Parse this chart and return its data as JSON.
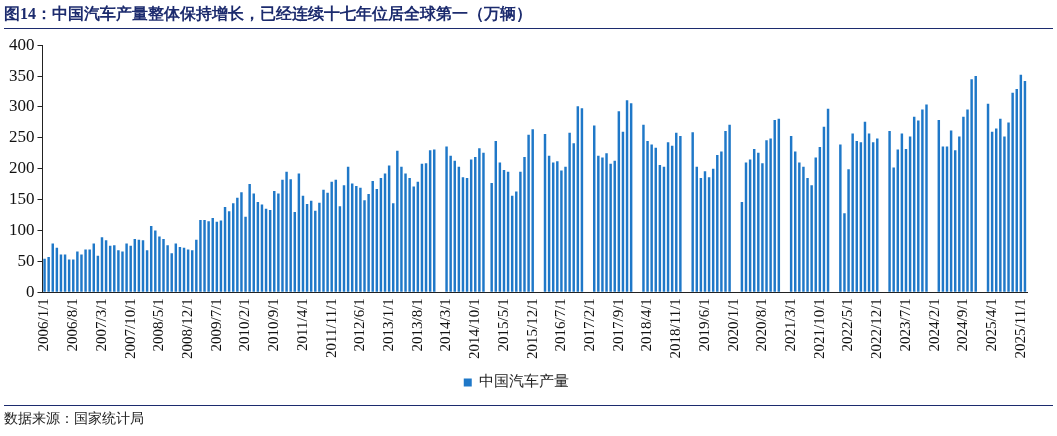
{
  "chart_data": {
    "type": "bar",
    "title": "图14：中国汽车产量整体保持增长，已经连续十七年位居全球第一（万辆）",
    "annotations": [
      "数据来源：国家统计局"
    ],
    "categories": [
      "2006/1/1",
      null,
      null,
      null,
      null,
      null,
      null,
      "2006/8/1",
      null,
      null,
      null,
      null,
      null,
      null,
      "2007/3/1",
      null,
      null,
      null,
      null,
      null,
      null,
      "2007/10/1",
      null,
      null,
      null,
      null,
      null,
      null,
      "2008/5/1",
      null,
      null,
      null,
      null,
      null,
      null,
      "2008/12/1",
      null,
      null,
      null,
      null,
      null,
      null,
      "2009/7/1",
      null,
      null,
      null,
      null,
      null,
      null,
      "2010/2/1",
      null,
      null,
      null,
      null,
      null,
      null,
      "2010/9/1",
      null,
      null,
      null,
      null,
      null,
      null,
      "2011/4/1",
      null,
      null,
      null,
      null,
      null,
      null,
      "2011/11/1",
      null,
      null,
      null,
      null,
      null,
      null,
      "2012/6/1",
      null,
      null,
      null,
      null,
      null,
      null,
      "2013/1/1",
      null,
      null,
      null,
      null,
      null,
      null,
      "2013/8/1",
      null,
      null,
      null,
      null,
      null,
      null,
      "2014/3/1",
      null,
      null,
      null,
      null,
      null,
      null,
      "2014/10/1",
      null,
      null,
      null,
      null,
      null,
      null,
      "2015/5/1",
      null,
      null,
      null,
      null,
      null,
      null,
      "2015/12/1",
      null,
      null,
      null,
      null,
      null,
      null,
      "2016/7/1",
      null,
      null,
      null,
      null,
      null,
      null,
      "2017/2/1",
      null,
      null,
      null,
      null,
      null,
      null,
      "2017/9/1",
      null,
      null,
      null,
      null,
      null,
      null,
      "2018/4/1",
      null,
      null,
      null,
      null,
      null,
      null,
      "2018/11/1",
      null,
      null,
      null,
      null,
      null,
      null,
      "2019/6/1",
      null,
      null,
      null,
      null,
      null,
      null,
      "2020/1/1",
      null,
      null,
      null,
      null,
      null,
      null,
      "2020/8/1",
      null,
      null,
      null,
      null,
      null,
      null,
      "2021/3/1",
      null,
      null,
      null,
      null,
      null,
      null,
      "2021/10/1",
      null,
      null,
      null,
      null,
      null,
      null,
      "2022/5/1",
      null,
      null,
      null,
      null,
      null,
      null,
      "2022/12/1",
      null,
      null,
      null,
      null,
      null,
      null,
      "2023/7/1",
      null,
      null,
      null,
      null,
      null,
      null,
      "2024/2/1",
      null,
      null,
      null,
      null,
      null,
      null,
      "2024/9/1",
      null,
      null,
      null,
      null,
      null,
      null,
      "2025/4/1",
      null,
      null,
      null,
      null,
      null,
      null,
      "2025/11/1",
      null
    ],
    "series": [
      {
        "name": "中国汽车产量",
        "color": "#1f78c8",
        "values": [
          54,
          57,
          79,
          72,
          61,
          61,
          53,
          53,
          66,
          61,
          69,
          69,
          79,
          59,
          89,
          84,
          75,
          76,
          68,
          66,
          79,
          75,
          86,
          85,
          84,
          68,
          107,
          100,
          90,
          86,
          76,
          63,
          79,
          73,
          72,
          69,
          68,
          85,
          117,
          117,
          115,
          120,
          114,
          116,
          138,
          131,
          144,
          153,
          162,
          122,
          175,
          160,
          146,
          142,
          135,
          133,
          164,
          160,
          182,
          195,
          183,
          130,
          192,
          156,
          143,
          148,
          132,
          145,
          166,
          161,
          179,
          182,
          139,
          173,
          203,
          176,
          172,
          169,
          149,
          159,
          180,
          167,
          185,
          192,
          205,
          144,
          229,
          203,
          192,
          185,
          171,
          179,
          208,
          209,
          230,
          231,
          null,
          null,
          236,
          221,
          213,
          203,
          186,
          185,
          215,
          219,
          233,
          226,
          null,
          177,
          245,
          210,
          198,
          195,
          156,
          163,
          195,
          219,
          255,
          264,
          null,
          null,
          256,
          221,
          210,
          212,
          197,
          203,
          258,
          241,
          301,
          298,
          null,
          null,
          270,
          221,
          218,
          225,
          208,
          213,
          293,
          260,
          311,
          306,
          null,
          null,
          271,
          245,
          239,
          234,
          206,
          203,
          243,
          237,
          258,
          253,
          null,
          null,
          259,
          203,
          185,
          196,
          186,
          200,
          222,
          228,
          261,
          271,
          null,
          null,
          146,
          210,
          215,
          232,
          226,
          209,
          246,
          249,
          279,
          281,
          null,
          null,
          253,
          228,
          210,
          203,
          185,
          173,
          218,
          235,
          268,
          297,
          null,
          null,
          239,
          128,
          199,
          257,
          245,
          243,
          276,
          257,
          243,
          249,
          null,
          null,
          261,
          202,
          231,
          257,
          232,
          252,
          284,
          278,
          296,
          304,
          null,
          null,
          279,
          236,
          236,
          262,
          230,
          252,
          284,
          296,
          345,
          350,
          null,
          null,
          305,
          260,
          265,
          281,
          252,
          275,
          323,
          329,
          352,
          342
        ]
      }
    ],
    "ylim": [
      0,
      400
    ],
    "yticks": [
      0,
      50,
      100,
      150,
      200,
      250,
      300,
      350,
      400
    ],
    "legend": "bottom"
  }
}
